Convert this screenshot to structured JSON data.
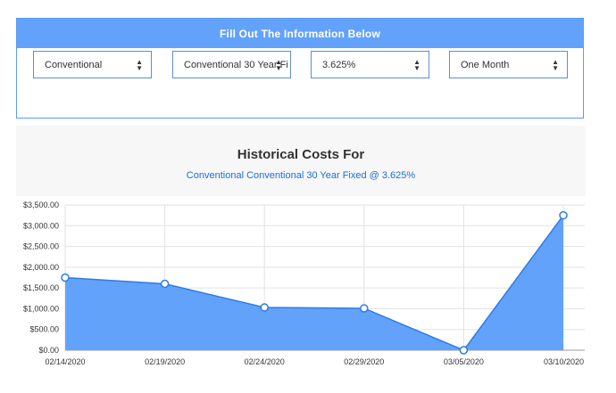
{
  "form": {
    "header": "Fill Out The Information Below",
    "loan_type": "Conventional",
    "loan_program": "Conventional 30 Year Fi",
    "rate": "3.625%",
    "period": "One Month"
  },
  "history": {
    "title": "Historical Costs For",
    "subtitle": "Conventional Conventional 30 Year Fixed @ 3.625%"
  },
  "colors": {
    "accent": "#62a2fb",
    "line": "#2f7be6",
    "fill": "#62a2fb"
  },
  "chart_data": {
    "type": "area",
    "x": [
      "02/14/2020",
      "02/19/2020",
      "02/24/2020",
      "02/29/2020",
      "03/05/2020",
      "03/10/2020"
    ],
    "series": [
      {
        "values": [
          1750,
          1600,
          1030,
          1010,
          0,
          3250
        ]
      }
    ],
    "y_ticks": [
      "$0.00",
      "$500.00",
      "$1,000.00",
      "$1,500.00",
      "$2,000.00",
      "$2,500.00",
      "$3,000.00",
      "$3,500.00"
    ],
    "ylim": [
      0,
      3500
    ],
    "grid": true
  }
}
